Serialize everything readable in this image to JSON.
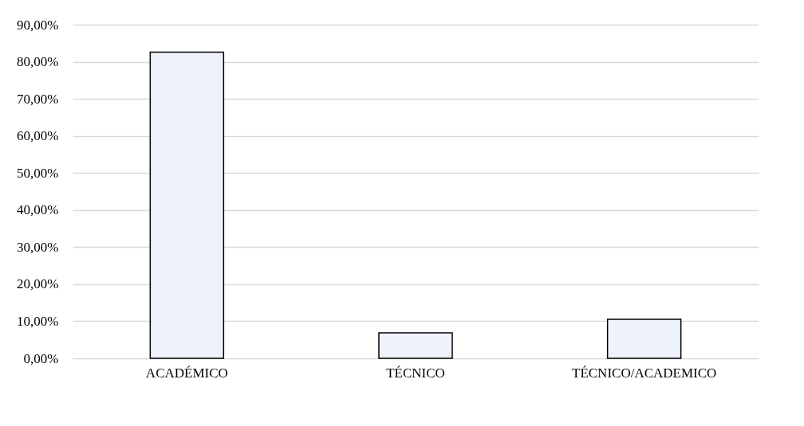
{
  "chart_data": {
    "type": "bar",
    "categories": [
      "ACADÉMICO",
      "TÉCNICO",
      "TÉCNICO/ACADEMICO"
    ],
    "values": [
      82.6,
      6.9,
      10.5
    ],
    "color": "#eef3fb",
    "ylim": [
      0,
      90
    ],
    "yticks": [
      {
        "value": 0,
        "label": "0,00%"
      },
      {
        "value": 10,
        "label": "10,00%"
      },
      {
        "value": 20,
        "label": "20,00%"
      },
      {
        "value": 30,
        "label": "30,00%"
      },
      {
        "value": 40,
        "label": "40,00%"
      },
      {
        "value": 50,
        "label": "50,00%"
      },
      {
        "value": 60,
        "label": "60,00%"
      },
      {
        "value": 70,
        "label": "70,00%"
      },
      {
        "value": 80,
        "label": "80,00%"
      },
      {
        "value": 90,
        "label": "90,00%"
      }
    ],
    "grid": "y"
  }
}
